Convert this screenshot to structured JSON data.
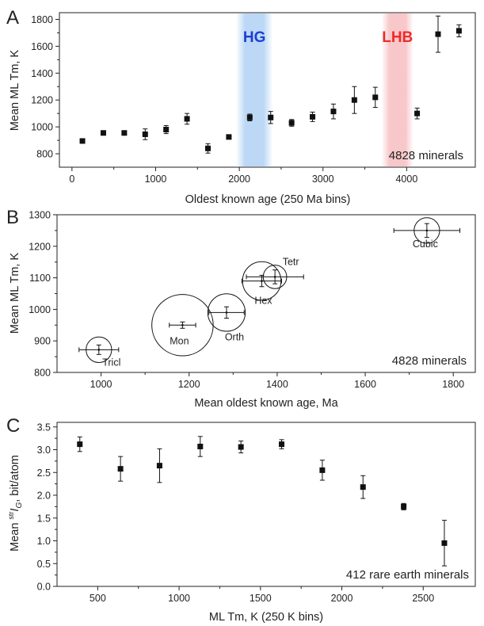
{
  "chart_data": [
    {
      "panel": "A",
      "type": "scatter",
      "xlabel": "Oldest known age (250 Ma bins)",
      "ylabel": "Mean ML Tm, K",
      "xlim": [
        -150,
        4820
      ],
      "ylim": [
        700,
        1850
      ],
      "xticks": [
        0,
        1000,
        2000,
        3000,
        4000
      ],
      "yticks": [
        800,
        1000,
        1200,
        1400,
        1600,
        1800
      ],
      "annotation": "4828 minerals",
      "bands": [
        {
          "label": "HG",
          "x0": 1960,
          "x1": 2400,
          "color": "#bcd8f6",
          "label_color": "#1d3fd0"
        },
        {
          "label": "LHB",
          "x0": 3700,
          "x1": 4080,
          "color": "#f8c7c9",
          "label_color": "#ee2a2a"
        }
      ],
      "points": [
        {
          "x": 125,
          "y": 895,
          "err": 0
        },
        {
          "x": 375,
          "y": 955,
          "err": 0
        },
        {
          "x": 625,
          "y": 955,
          "err": 15
        },
        {
          "x": 875,
          "y": 945,
          "err": 40
        },
        {
          "x": 1125,
          "y": 980,
          "err": 30
        },
        {
          "x": 1375,
          "y": 1060,
          "err": 40
        },
        {
          "x": 1625,
          "y": 840,
          "err": 35
        },
        {
          "x": 1875,
          "y": 925,
          "err": 15
        },
        {
          "x": 2125,
          "y": 1070,
          "err": 25
        },
        {
          "x": 2375,
          "y": 1070,
          "err": 45
        },
        {
          "x": 2625,
          "y": 1030,
          "err": 25
        },
        {
          "x": 2875,
          "y": 1075,
          "err": 35
        },
        {
          "x": 3125,
          "y": 1115,
          "err": 55
        },
        {
          "x": 3375,
          "y": 1200,
          "err": 100
        },
        {
          "x": 3625,
          "y": 1220,
          "err": 75
        },
        {
          "x": 4125,
          "y": 1100,
          "err": 40
        },
        {
          "x": 4375,
          "y": 1690,
          "err": 135
        },
        {
          "x": 4625,
          "y": 1715,
          "err": 45
        }
      ]
    },
    {
      "panel": "B",
      "type": "scatter",
      "xlabel": "Mean oldest known age, Ma",
      "ylabel": "Mean ML Tm, K",
      "xlim": [
        900,
        1850
      ],
      "ylim": [
        800,
        1300
      ],
      "xticks": [
        1000,
        1200,
        1400,
        1600,
        1800
      ],
      "yticks": [
        800,
        900,
        1000,
        1100,
        1200,
        1300
      ],
      "annotation": "4828 minerals",
      "points": [
        {
          "label": "Tricl",
          "x": 995,
          "y": 872,
          "xerr": 45,
          "yerr": 15,
          "size": 260
        },
        {
          "label": "Mon",
          "x": 1185,
          "y": 950,
          "xerr": 30,
          "yerr": 10,
          "size": 1500
        },
        {
          "label": "Orth",
          "x": 1285,
          "y": 990,
          "xerr": 40,
          "yerr": 18,
          "size": 560
        },
        {
          "label": "Hex",
          "x": 1365,
          "y": 1090,
          "xerr": 45,
          "yerr": 18,
          "size": 590
        },
        {
          "label": "Tetr",
          "x": 1395,
          "y": 1103,
          "xerr": 65,
          "yerr": 22,
          "size": 220
        },
        {
          "label": "Cubic",
          "x": 1740,
          "y": 1250,
          "xerr": 75,
          "yerr": 22,
          "size": 260
        }
      ]
    },
    {
      "panel": "C",
      "type": "scatter",
      "xlabel": "ML Tm, K (250 K bins)",
      "ylabel_parts": {
        "prefix": "Mean ",
        "sup": "str",
        "main": "I",
        "sub": "G",
        "suffix": ",  bit/atom"
      },
      "xlim": [
        250,
        2820
      ],
      "ylim": [
        0,
        3.6
      ],
      "xticks": [
        500,
        1000,
        1500,
        2000,
        2500
      ],
      "yticks": [
        0.0,
        0.5,
        1.0,
        1.5,
        2.0,
        2.5,
        3.0,
        3.5
      ],
      "ytick_labels": [
        "0.0",
        "0.5",
        "1.0",
        "1.5",
        "2.0",
        "2.5",
        "3.0",
        "3.5"
      ],
      "annotation": "412 rare earth minerals",
      "points": [
        {
          "x": 390,
          "y": 3.12,
          "err": 0.16
        },
        {
          "x": 640,
          "y": 2.58,
          "err": 0.27
        },
        {
          "x": 880,
          "y": 2.65,
          "err": 0.37
        },
        {
          "x": 1130,
          "y": 3.07,
          "err": 0.22
        },
        {
          "x": 1380,
          "y": 3.06,
          "err": 0.13
        },
        {
          "x": 1630,
          "y": 3.12,
          "err": 0.1
        },
        {
          "x": 1880,
          "y": 2.55,
          "err": 0.22
        },
        {
          "x": 2130,
          "y": 2.18,
          "err": 0.25
        },
        {
          "x": 2380,
          "y": 1.75,
          "err": 0.07
        },
        {
          "x": 2630,
          "y": 0.95,
          "err": 0.5
        }
      ]
    }
  ]
}
